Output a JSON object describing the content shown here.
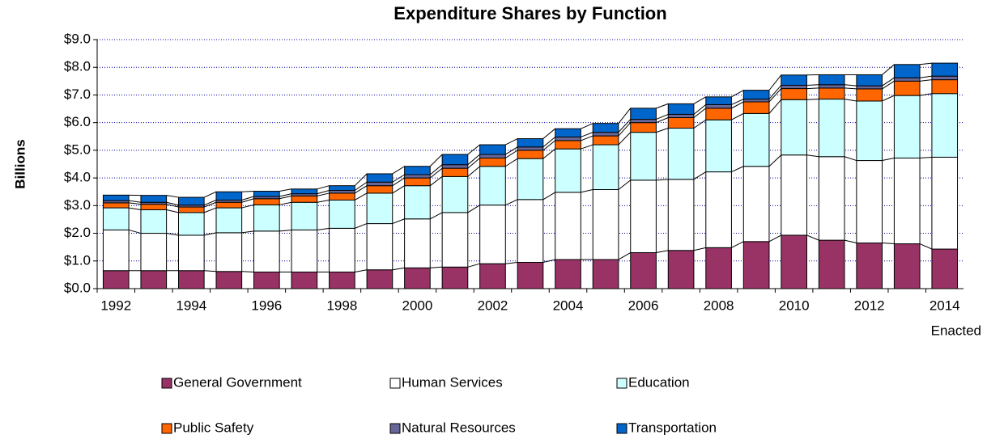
{
  "chart_data": {
    "type": "stacked-bar",
    "title": "Expenditure Shares by Function",
    "y_label": "Billions",
    "annotation": "Enacted",
    "categories": [
      "1992",
      null,
      "1994",
      null,
      "1996",
      null,
      "1998",
      null,
      "2000",
      null,
      "2002",
      null,
      "2004",
      null,
      "2006",
      null,
      "2008",
      null,
      "2010",
      null,
      "2012",
      null,
      "2014"
    ],
    "series": [
      {
        "name": "General Government",
        "color": "#993366",
        "values": [
          0.65,
          0.65,
          0.65,
          0.62,
          0.6,
          0.6,
          0.6,
          0.68,
          0.75,
          0.78,
          0.9,
          0.95,
          1.05,
          1.05,
          1.3,
          1.38,
          1.48,
          1.7,
          1.93,
          1.75,
          1.65,
          1.62,
          1.43
        ]
      },
      {
        "name": "Human Services",
        "color": "#ffffff",
        "values": [
          1.47,
          1.35,
          1.28,
          1.4,
          1.48,
          1.52,
          1.58,
          1.67,
          1.77,
          1.97,
          2.12,
          2.27,
          2.43,
          2.53,
          2.62,
          2.57,
          2.74,
          2.72,
          2.9,
          3.02,
          2.98,
          3.1,
          3.32
        ]
      },
      {
        "name": "Education",
        "color": "#ccffff",
        "values": [
          0.8,
          0.85,
          0.82,
          0.9,
          0.95,
          1.0,
          1.02,
          1.1,
          1.2,
          1.3,
          1.4,
          1.48,
          1.57,
          1.62,
          1.73,
          1.85,
          1.88,
          1.91,
          2.0,
          2.08,
          2.15,
          2.26,
          2.3
        ]
      },
      {
        "name": "Public Safety",
        "color": "#ff6600",
        "values": [
          0.18,
          0.2,
          0.2,
          0.2,
          0.22,
          0.23,
          0.25,
          0.27,
          0.28,
          0.3,
          0.3,
          0.3,
          0.3,
          0.32,
          0.35,
          0.38,
          0.42,
          0.42,
          0.4,
          0.4,
          0.44,
          0.52,
          0.5
        ]
      },
      {
        "name": "Natural Resources",
        "color": "#666699",
        "values": [
          0.08,
          0.07,
          0.07,
          0.08,
          0.08,
          0.08,
          0.1,
          0.13,
          0.12,
          0.13,
          0.13,
          0.12,
          0.13,
          0.13,
          0.12,
          0.12,
          0.13,
          0.1,
          0.12,
          0.12,
          0.11,
          0.12,
          0.13
        ]
      },
      {
        "name": "Transportation",
        "color": "#0066cc",
        "values": [
          0.2,
          0.25,
          0.28,
          0.3,
          0.19,
          0.17,
          0.17,
          0.3,
          0.3,
          0.37,
          0.35,
          0.3,
          0.3,
          0.32,
          0.4,
          0.38,
          0.28,
          0.32,
          0.37,
          0.36,
          0.4,
          0.48,
          0.47
        ]
      }
    ],
    "ylim": [
      0,
      9
    ],
    "yticks": [
      {
        "value": 0,
        "label": "$0.0"
      },
      {
        "value": 1,
        "label": "$1.0"
      },
      {
        "value": 2,
        "label": "$2.0"
      },
      {
        "value": 3,
        "label": "$3.0"
      },
      {
        "value": 4,
        "label": "$4.0"
      },
      {
        "value": 5,
        "label": "$5.0"
      },
      {
        "value": 6,
        "label": "$6.0"
      },
      {
        "value": 7,
        "label": "$7.0"
      },
      {
        "value": 8,
        "label": "$8.0"
      },
      {
        "value": 9,
        "label": "$9.0"
      }
    ],
    "grid": true
  }
}
